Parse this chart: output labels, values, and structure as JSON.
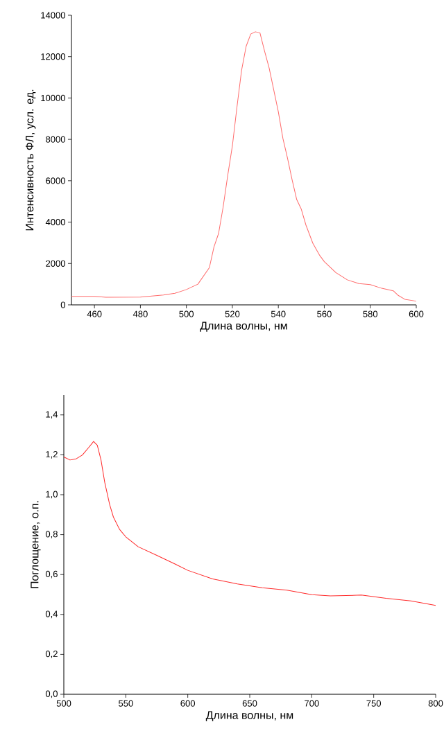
{
  "chart_data": [
    {
      "type": "line",
      "xlabel": "Длина волны, нм",
      "ylabel": "Интенсивность ФЛ, усл. ед.",
      "color": "#ff6b6b",
      "x": [
        450,
        460,
        465,
        480,
        490,
        495,
        500,
        505,
        510,
        512,
        514,
        516,
        518,
        520,
        522,
        524,
        526,
        528,
        530,
        532,
        534,
        536,
        538,
        540,
        542,
        544,
        546,
        548,
        550,
        552,
        555,
        558,
        560,
        565,
        570,
        575,
        580,
        585,
        590,
        592,
        595,
        600
      ],
      "values": [
        410,
        410,
        365,
        380,
        480,
        560,
        740,
        1000,
        1800,
        2800,
        3450,
        4740,
        6270,
        7680,
        9560,
        11330,
        12500,
        13090,
        13200,
        13150,
        12270,
        11450,
        10390,
        9330,
        8040,
        7090,
        6040,
        5090,
        4620,
        3860,
        2980,
        2390,
        2090,
        1560,
        1210,
        1030,
        980,
        800,
        680,
        470,
        270,
        180
      ],
      "xlim": [
        450,
        600
      ],
      "ylim": [
        0,
        14000
      ],
      "xticks": [
        460,
        480,
        500,
        520,
        540,
        560,
        580,
        600
      ],
      "yticks": [
        0,
        2000,
        4000,
        6000,
        8000,
        10000,
        12000,
        14000
      ]
    },
    {
      "type": "line",
      "xlabel": "Длина волны, нм",
      "ylabel": "Поглощение, о.п.",
      "color": "#ff2a2a",
      "x": [
        500,
        505,
        510,
        515,
        520,
        524,
        527,
        530,
        533,
        537,
        540,
        545,
        550,
        560,
        575,
        590,
        600,
        620,
        640,
        660,
        680,
        700,
        715,
        740,
        760,
        780,
        800
      ],
      "values": [
        1.189,
        1.174,
        1.18,
        1.199,
        1.236,
        1.267,
        1.248,
        1.174,
        1.062,
        0.95,
        0.888,
        0.826,
        0.789,
        0.739,
        0.696,
        0.652,
        0.621,
        0.578,
        0.553,
        0.534,
        0.522,
        0.499,
        0.493,
        0.497,
        0.481,
        0.468,
        0.445
      ],
      "xlim": [
        500,
        800
      ],
      "ylim": [
        0,
        1.5
      ],
      "xticks": [
        500,
        550,
        600,
        650,
        700,
        750,
        800
      ],
      "yticks": [
        {
          "value": 0,
          "label": "0,0"
        },
        {
          "value": 0.2,
          "label": "0,2"
        },
        {
          "value": 0.4,
          "label": "0,4"
        },
        {
          "value": 0.6,
          "label": "0,6"
        },
        {
          "value": 0.8,
          "label": "0,8"
        },
        {
          "value": 1.0,
          "label": "1,0"
        },
        {
          "value": 1.2,
          "label": "1,2"
        },
        {
          "value": 1.4,
          "label": "1,4"
        }
      ]
    }
  ]
}
